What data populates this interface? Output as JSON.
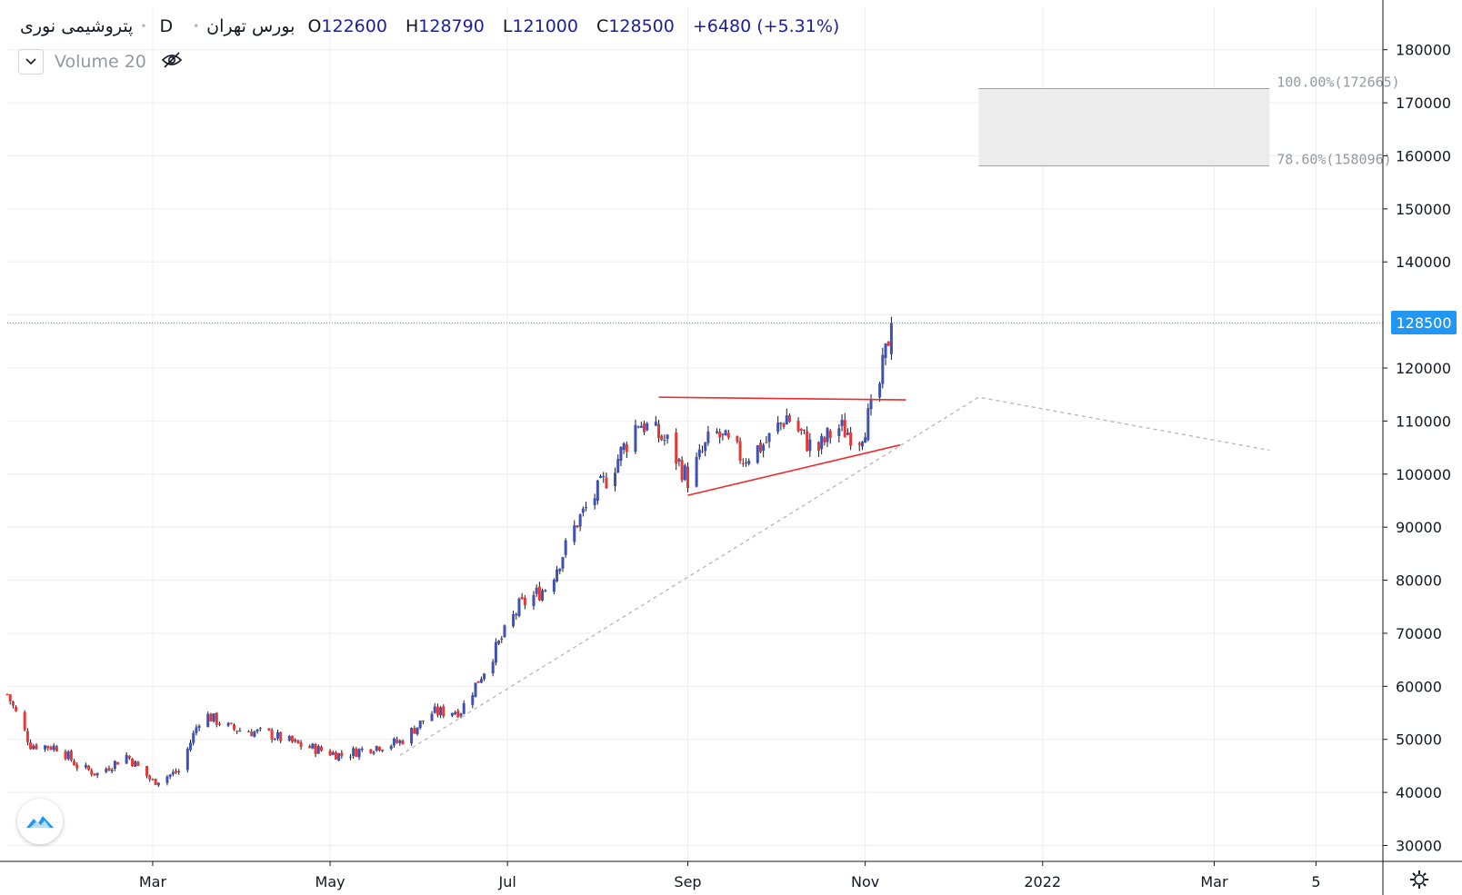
{
  "header": {
    "symbol": "پتروشیمی نوری",
    "interval": "D",
    "exchange": "بورس تهران",
    "ohlc": {
      "o_key": "O",
      "o": "122600",
      "h_key": "H",
      "h": "128790",
      "l_key": "L",
      "l": "121000",
      "c_key": "C",
      "c": "128500"
    },
    "change": "+6480 (+5.31%)"
  },
  "volume_indicator": {
    "label": "Volume 20",
    "icons": [
      "chevron-down-icon",
      "eye-off-icon"
    ]
  },
  "colors": {
    "up": "#3f51b5",
    "down": "#e53935",
    "trend": "#ef2a2a",
    "price_line": "#2196f3",
    "grid": "#e8e8e8",
    "fib_box": "#ececec",
    "projection": "#b2b5be"
  },
  "last_price_label": "128500",
  "chart_data": {
    "type": "candlestick",
    "title": "",
    "y_range": [
      27000,
      188000
    ],
    "y_ticks": [
      30000,
      40000,
      50000,
      60000,
      70000,
      80000,
      90000,
      100000,
      110000,
      120000,
      130000,
      140000,
      150000,
      160000,
      170000,
      180000
    ],
    "y_tick_labels": [
      "30000",
      "40000",
      "50000",
      "60000",
      "70000",
      "80000",
      "90000",
      "100000",
      "110000",
      "120000",
      "130000",
      "140000",
      "150000",
      "160000",
      "170000",
      "180000"
    ],
    "x_ticks": [
      {
        "label": "Mar",
        "date": "2021-03-01"
      },
      {
        "label": "May",
        "date": "2021-05-01"
      },
      {
        "label": "Jul",
        "date": "2021-07-01"
      },
      {
        "label": "Sep",
        "date": "2021-09-01"
      },
      {
        "label": "Nov",
        "date": "2021-11-01"
      },
      {
        "label": "2022",
        "date": "2022-01-01"
      },
      {
        "label": "Mar",
        "date": "2022-03-01"
      },
      {
        "label": "5",
        "date": "2022-04-05"
      }
    ],
    "x_range": [
      "2021-01-10",
      "2022-04-28"
    ],
    "last_price": 128500,
    "close_path": [
      {
        "date": "2021-01-10",
        "close": 58500
      },
      {
        "date": "2021-01-18",
        "close": 49000
      },
      {
        "date": "2021-01-28",
        "close": 48500
      },
      {
        "date": "2021-02-03",
        "close": 45000
      },
      {
        "date": "2021-02-10",
        "close": 43500
      },
      {
        "date": "2021-02-20",
        "close": 47000
      },
      {
        "date": "2021-03-01",
        "close": 42000
      },
      {
        "date": "2021-03-10",
        "close": 44000
      },
      {
        "date": "2021-03-18",
        "close": 55000
      },
      {
        "date": "2021-03-28",
        "close": 52000
      },
      {
        "date": "2021-04-10",
        "close": 51000
      },
      {
        "date": "2021-04-20",
        "close": 49000
      },
      {
        "date": "2021-05-05",
        "close": 47000
      },
      {
        "date": "2021-05-15",
        "close": 48500
      },
      {
        "date": "2021-05-25",
        "close": 49500
      },
      {
        "date": "2021-06-05",
        "close": 55000
      },
      {
        "date": "2021-06-15",
        "close": 55500
      },
      {
        "date": "2021-06-25",
        "close": 65000
      },
      {
        "date": "2021-07-05",
        "close": 75000
      },
      {
        "date": "2021-07-15",
        "close": 79000
      },
      {
        "date": "2021-07-25",
        "close": 91000
      },
      {
        "date": "2021-08-05",
        "close": 100000
      },
      {
        "date": "2021-08-15",
        "close": 110000
      },
      {
        "date": "2021-08-25",
        "close": 106000
      },
      {
        "date": "2021-09-01",
        "close": 99000
      },
      {
        "date": "2021-09-10",
        "close": 108000
      },
      {
        "date": "2021-09-20",
        "close": 103000
      },
      {
        "date": "2021-09-28",
        "close": 106000
      },
      {
        "date": "2021-10-05",
        "close": 111000
      },
      {
        "date": "2021-10-15",
        "close": 104000
      },
      {
        "date": "2021-10-22",
        "close": 109000
      },
      {
        "date": "2021-10-30",
        "close": 107000
      },
      {
        "date": "2021-11-05",
        "close": 114000
      },
      {
        "date": "2021-11-10",
        "close": 128500
      }
    ],
    "trendlines": [
      {
        "name": "resistance",
        "points": [
          {
            "date": "2021-08-22",
            "value": 114500
          },
          {
            "date": "2021-11-15",
            "value": 114000
          }
        ]
      },
      {
        "name": "support",
        "points": [
          {
            "date": "2021-09-01",
            "value": 96000
          },
          {
            "date": "2021-11-13",
            "value": 105500
          }
        ]
      }
    ],
    "projection": [
      {
        "date": "2021-05-25",
        "value": 47000
      },
      {
        "date": "2021-12-10",
        "value": 114500
      },
      {
        "date": "2022-03-20",
        "value": 104500
      }
    ],
    "fib_levels": [
      {
        "label": "100.00%(172665)",
        "value": 172665
      },
      {
        "label": "78.60%(158096)",
        "value": 158096
      }
    ],
    "fib_box_dates": [
      "2021-12-10",
      "2022-03-20"
    ]
  }
}
